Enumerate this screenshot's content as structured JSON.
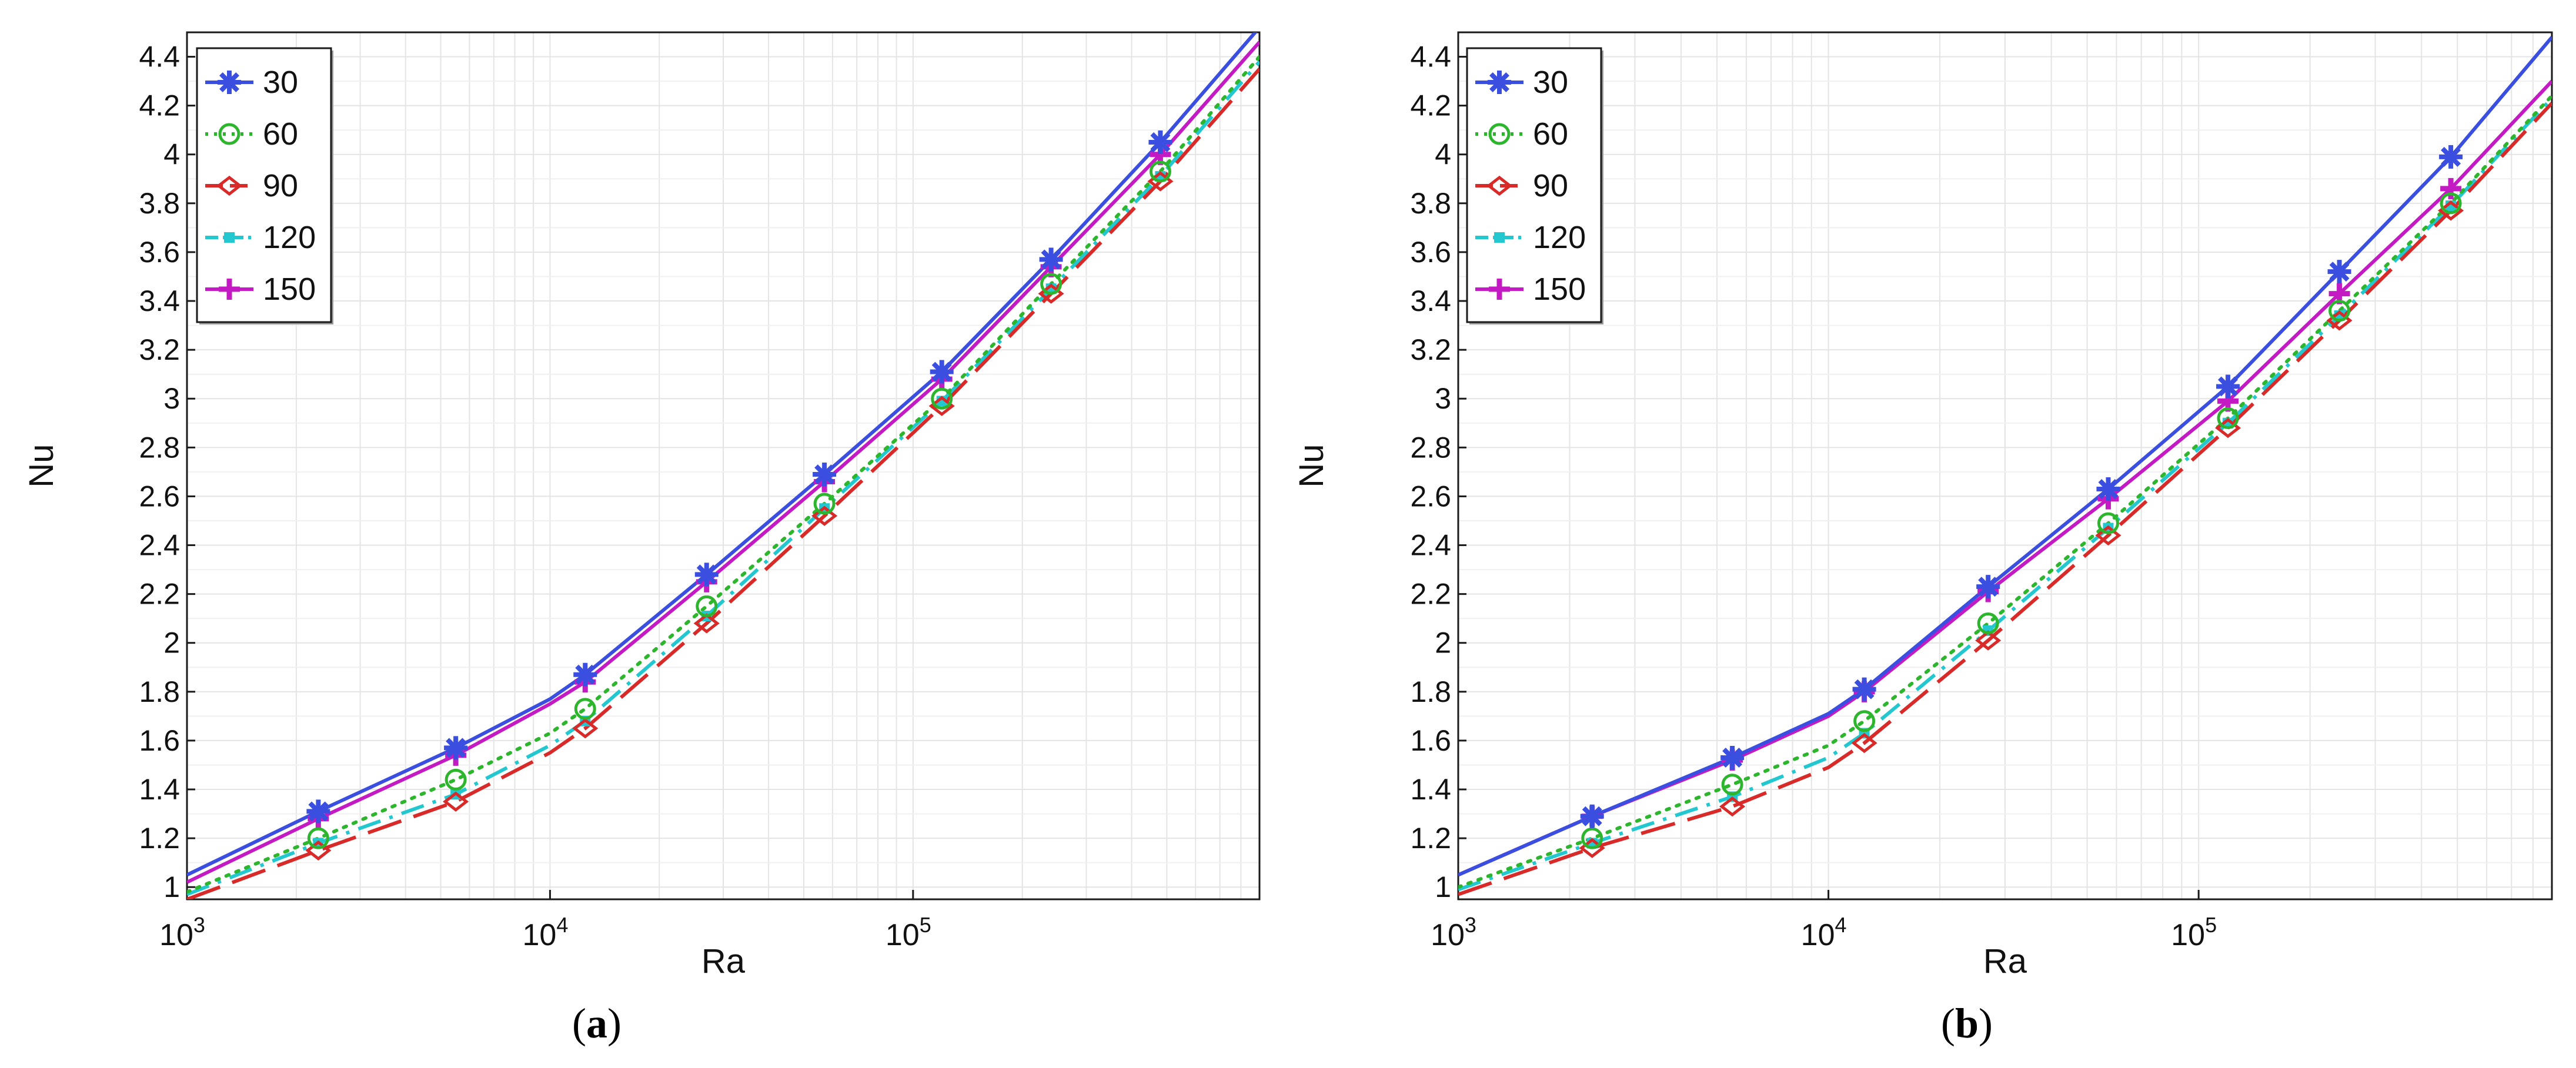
{
  "figure": {
    "panels": [
      {
        "caption_open": "(",
        "caption_letter": "a",
        "caption_close": ")"
      },
      {
        "caption_open": "(",
        "caption_letter": "b",
        "caption_close": ")"
      }
    ]
  },
  "chart_data": [
    {
      "type": "line",
      "panel": "a",
      "xlabel": "Ra",
      "ylabel": "Nu",
      "xscale": "log",
      "xlim": [
        1000,
        900000
      ],
      "ylim": [
        0.95,
        4.5
      ],
      "xticks": [
        {
          "value": 1000,
          "base": "10",
          "exp": "3"
        },
        {
          "value": 10000,
          "base": "10",
          "exp": "4"
        },
        {
          "value": 100000,
          "base": "10",
          "exp": "5"
        }
      ],
      "yticks": [
        1,
        1.2,
        1.4,
        1.6,
        1.8,
        2,
        2.2,
        2.4,
        2.6,
        2.8,
        3,
        3.2,
        3.4,
        3.6,
        3.8,
        4,
        4.2,
        4.4
      ],
      "ytick_labels": [
        "1",
        "1.2",
        "1.4",
        "1.6",
        "1.8",
        "2",
        "2.2",
        "2.4",
        "2.6",
        "2.8",
        "3",
        "3.2",
        "3.4",
        "3.6",
        "3.8",
        "4",
        "4.2",
        "4.4"
      ],
      "grid": true,
      "legend_position": "top-left",
      "line_x": [
        1000,
        2300,
        5500,
        10000,
        12500,
        27000,
        57000,
        120000,
        240000,
        480000,
        900000
      ],
      "marker_x": [
        2300,
        5500,
        12500,
        27000,
        57000,
        120000,
        240000,
        480000
      ],
      "series": [
        {
          "name": "30",
          "color": "#3a4fe0",
          "marker": "asterisk",
          "dash": "solid",
          "line_y": [
            1.05,
            1.31,
            1.57,
            1.77,
            1.87,
            2.28,
            2.69,
            3.11,
            3.57,
            4.05,
            4.52
          ],
          "marker_y": [
            1.31,
            1.57,
            1.87,
            2.28,
            2.69,
            3.11,
            3.57,
            4.05
          ]
        },
        {
          "name": "60",
          "color": "#2db52d",
          "marker": "circle",
          "dash": "dotted",
          "line_y": [
            0.98,
            1.2,
            1.44,
            1.63,
            1.73,
            2.15,
            2.57,
            3.0,
            3.47,
            3.93,
            4.4
          ],
          "marker_y": [
            1.2,
            1.44,
            1.73,
            2.15,
            2.57,
            3.0,
            3.47,
            3.93
          ]
        },
        {
          "name": "90",
          "color": "#d92a2a",
          "marker": "diamond",
          "dash": "dashed",
          "line_y": [
            0.95,
            1.15,
            1.35,
            1.55,
            1.65,
            2.08,
            2.52,
            2.97,
            3.43,
            3.89,
            4.35
          ],
          "marker_y": [
            1.15,
            1.35,
            1.65,
            2.08,
            2.52,
            2.97,
            3.43,
            3.89
          ]
        },
        {
          "name": "120",
          "color": "#22c7cf",
          "marker": "square",
          "dash": "dashdot",
          "line_y": [
            0.97,
            1.18,
            1.38,
            1.58,
            1.68,
            2.11,
            2.55,
            2.99,
            3.45,
            3.91,
            4.38
          ],
          "marker_y": [
            1.18,
            1.38,
            1.68,
            2.11,
            2.55,
            2.99,
            3.45,
            3.91
          ]
        },
        {
          "name": "150",
          "color": "#c41ac4",
          "marker": "plus",
          "dash": "solid",
          "line_y": [
            1.02,
            1.28,
            1.54,
            1.75,
            1.84,
            2.25,
            2.66,
            3.08,
            3.54,
            4.0,
            4.46
          ],
          "marker_y": [
            1.28,
            1.54,
            1.84,
            2.25,
            2.66,
            3.08,
            3.54,
            4.0
          ]
        }
      ]
    },
    {
      "type": "line",
      "panel": "b",
      "xlabel": "Ra",
      "ylabel": "Nu",
      "xscale": "log",
      "xlim": [
        1000,
        900000
      ],
      "ylim": [
        0.95,
        4.5
      ],
      "xticks": [
        {
          "value": 1000,
          "base": "10",
          "exp": "3"
        },
        {
          "value": 10000,
          "base": "10",
          "exp": "4"
        },
        {
          "value": 100000,
          "base": "10",
          "exp": "5"
        }
      ],
      "yticks": [
        1,
        1.2,
        1.4,
        1.6,
        1.8,
        2,
        2.2,
        2.4,
        2.6,
        2.8,
        3,
        3.2,
        3.4,
        3.6,
        3.8,
        4,
        4.2,
        4.4
      ],
      "ytick_labels": [
        "1",
        "1.2",
        "1.4",
        "1.6",
        "1.8",
        "2",
        "2.2",
        "2.4",
        "2.6",
        "2.8",
        "3",
        "3.2",
        "3.4",
        "3.6",
        "3.8",
        "4",
        "4.2",
        "4.4"
      ],
      "grid": true,
      "legend_position": "top-left",
      "line_x": [
        1000,
        2300,
        5500,
        10000,
        12500,
        27000,
        57000,
        120000,
        240000,
        480000,
        900000
      ],
      "marker_x": [
        2300,
        5500,
        12500,
        27000,
        57000,
        120000,
        240000,
        480000
      ],
      "series": [
        {
          "name": "30",
          "color": "#3a4fe0",
          "marker": "asterisk",
          "dash": "solid",
          "line_y": [
            1.05,
            1.29,
            1.53,
            1.71,
            1.81,
            2.23,
            2.63,
            3.05,
            3.52,
            3.99,
            4.48
          ],
          "marker_y": [
            1.29,
            1.53,
            1.81,
            2.23,
            2.63,
            3.05,
            3.52,
            3.99
          ]
        },
        {
          "name": "60",
          "color": "#2db52d",
          "marker": "circle",
          "dash": "dotted",
          "line_y": [
            1.0,
            1.2,
            1.42,
            1.58,
            1.68,
            2.08,
            2.49,
            2.92,
            3.36,
            3.8,
            4.24
          ]
        },
        {
          "name": "90",
          "color": "#d92a2a",
          "marker": "diamond",
          "dash": "dashed",
          "line_y": [
            0.97,
            1.16,
            1.33,
            1.49,
            1.59,
            2.01,
            2.44,
            2.88,
            3.32,
            3.77,
            4.21
          ]
        },
        {
          "name": "120",
          "color": "#22c7cf",
          "marker": "square",
          "dash": "dashdot",
          "line_y": [
            0.99,
            1.18,
            1.37,
            1.53,
            1.63,
            2.05,
            2.47,
            2.9,
            3.34,
            3.79,
            4.23
          ]
        },
        {
          "name": "150",
          "color": "#c41ac4",
          "marker": "plus",
          "dash": "solid",
          "line_y": [
            1.05,
            1.29,
            1.52,
            1.7,
            1.8,
            2.21,
            2.59,
            2.99,
            3.43,
            3.86,
            4.3
          ]
        }
      ]
    }
  ]
}
